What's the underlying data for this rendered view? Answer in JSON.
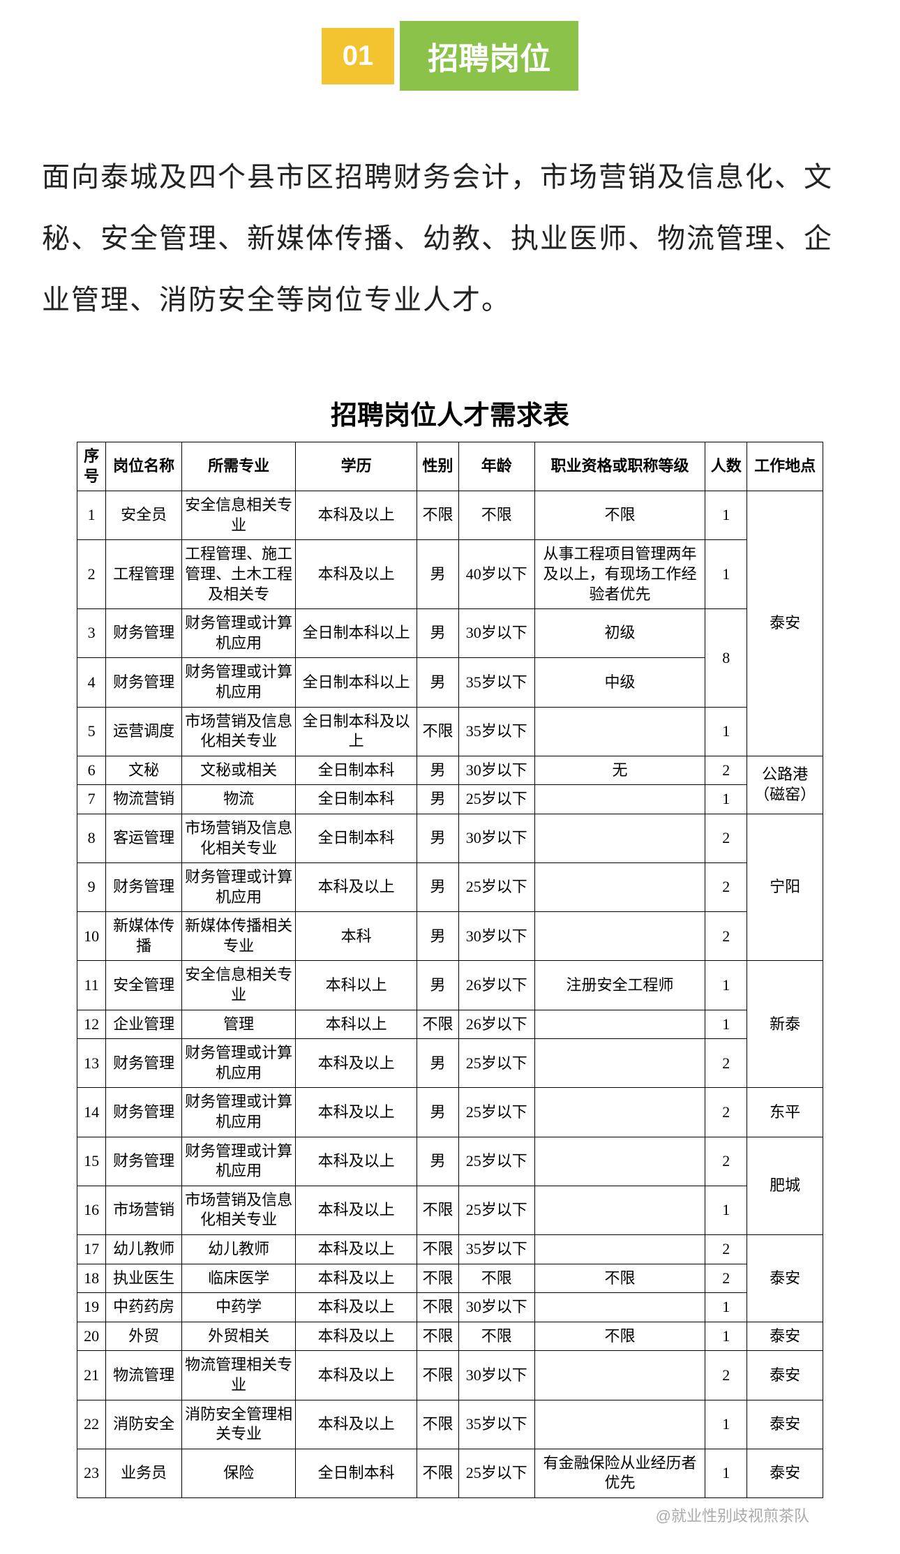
{
  "banner": {
    "num": "01",
    "title": "招聘岗位"
  },
  "intro": "面向泰城及四个县市区招聘财务会计，市场营销及信息化、文秘、安全管理、新媒体传播、幼教、执业医师、物流管理、企业管理、消防安全等岗位专业人才。",
  "table_title": "招聘岗位人才需求表",
  "columns": [
    "序号",
    "岗位名称",
    "所需专业",
    "学历",
    "性别",
    "年龄",
    "职业资格或职称等级",
    "人数",
    "工作地点"
  ],
  "rows": [
    {
      "idx": "1",
      "name": "安全员",
      "major": "安全信息相关专业",
      "edu": "本科及以上",
      "gender": "不限",
      "age": "不限",
      "qual": "不限",
      "count": "1"
    },
    {
      "idx": "2",
      "name": "工程管理",
      "major": "工程管理、施工管理、土木工程及相关专",
      "edu": "本科及以上",
      "gender": "男",
      "age": "40岁以下",
      "qual": "从事工程项目管理两年及以上，有现场工作经验者优先",
      "count": "1"
    },
    {
      "idx": "3",
      "name": "财务管理",
      "major": "财务管理或计算机应用",
      "edu": "全日制本科以上",
      "gender": "男",
      "age": "30岁以下",
      "qual": "初级"
    },
    {
      "idx": "4",
      "name": "财务管理",
      "major": "财务管理或计算机应用",
      "edu": "全日制本科以上",
      "gender": "男",
      "age": "35岁以下",
      "qual": "中级"
    },
    {
      "idx": "5",
      "name": "运营调度",
      "major": "市场营销及信息化相关专业",
      "edu": "全日制本科及以上",
      "gender": "不限",
      "age": "35岁以下",
      "qual": "",
      "count": "1"
    },
    {
      "idx": "6",
      "name": "文秘",
      "major": "文秘或相关",
      "edu": "全日制本科",
      "gender": "男",
      "age": "30岁以下",
      "qual": "无",
      "count": "2"
    },
    {
      "idx": "7",
      "name": "物流营销",
      "major": "物流",
      "edu": "全日制本科",
      "gender": "男",
      "age": "25岁以下",
      "qual": "",
      "count": "1"
    },
    {
      "idx": "8",
      "name": "客运管理",
      "major": "市场营销及信息化相关专业",
      "edu": "全日制本科",
      "gender": "男",
      "age": "30岁以下",
      "qual": "",
      "count": "2"
    },
    {
      "idx": "9",
      "name": "财务管理",
      "major": "财务管理或计算机应用",
      "edu": "本科及以上",
      "gender": "男",
      "age": "25岁以下",
      "qual": "",
      "count": "2"
    },
    {
      "idx": "10",
      "name": "新媒体传播",
      "major": "新媒体传播相关专业",
      "edu": "本科",
      "gender": "男",
      "age": "30岁以下",
      "qual": "",
      "count": "2"
    },
    {
      "idx": "11",
      "name": "安全管理",
      "major": "安全信息相关专业",
      "edu": "本科以上",
      "gender": "男",
      "age": "26岁以下",
      "qual": "注册安全工程师",
      "count": "1"
    },
    {
      "idx": "12",
      "name": "企业管理",
      "major": "管理",
      "edu": "本科以上",
      "gender": "不限",
      "age": "26岁以下",
      "qual": "",
      "count": "1"
    },
    {
      "idx": "13",
      "name": "财务管理",
      "major": "财务管理或计算机应用",
      "edu": "本科及以上",
      "gender": "男",
      "age": "25岁以下",
      "qual": "",
      "count": "2"
    },
    {
      "idx": "14",
      "name": "财务管理",
      "major": "财务管理或计算机应用",
      "edu": "本科及以上",
      "gender": "男",
      "age": "25岁以下",
      "qual": "",
      "count": "2"
    },
    {
      "idx": "15",
      "name": "财务管理",
      "major": "财务管理或计算机应用",
      "edu": "本科及以上",
      "gender": "男",
      "age": "25岁以下",
      "qual": "",
      "count": "2"
    },
    {
      "idx": "16",
      "name": "市场营销",
      "major": "市场营销及信息化相关专业",
      "edu": "本科及以上",
      "gender": "不限",
      "age": "25岁以下",
      "qual": "",
      "count": "1"
    },
    {
      "idx": "17",
      "name": "幼儿教师",
      "major": "幼儿教师",
      "edu": "本科及以上",
      "gender": "不限",
      "age": "35岁以下",
      "qual": "",
      "count": "2"
    },
    {
      "idx": "18",
      "name": "执业医生",
      "major": "临床医学",
      "edu": "本科及以上",
      "gender": "不限",
      "age": "不限",
      "qual": "不限",
      "count": "2"
    },
    {
      "idx": "19",
      "name": "中药药房",
      "major": "中药学",
      "edu": "本科及以上",
      "gender": "不限",
      "age": "30岁以下",
      "qual": "",
      "count": "1"
    },
    {
      "idx": "20",
      "name": "外贸",
      "major": "外贸相关",
      "edu": "本科及以上",
      "gender": "不限",
      "age": "不限",
      "qual": "不限",
      "count": "1"
    },
    {
      "idx": "21",
      "name": "物流管理",
      "major": "物流管理相关专业",
      "edu": "本科及以上",
      "gender": "不限",
      "age": "30岁以下",
      "qual": "",
      "count": "2"
    },
    {
      "idx": "22",
      "name": "消防安全",
      "major": "消防安全管理相关专业",
      "edu": "本科及以上",
      "gender": "不限",
      "age": "35岁以下",
      "qual": "",
      "count": "1"
    },
    {
      "idx": "23",
      "name": "业务员",
      "major": "保险",
      "edu": "全日制本科",
      "gender": "不限",
      "age": "25岁以下",
      "qual": "有金融保险从业经历者优先",
      "count": "1"
    }
  ],
  "location_spans": [
    {
      "text": "泰安",
      "span": 5
    },
    {
      "text": "公路港（磁窑）",
      "span": 2
    },
    {
      "text": "宁阳",
      "span": 3
    },
    {
      "text": "新泰",
      "span": 3
    },
    {
      "text": "东平",
      "span": 1
    },
    {
      "text": "肥城",
      "span": 2
    },
    {
      "text": "泰安",
      "span": 3
    },
    {
      "text": "泰安",
      "span": 1
    },
    {
      "text": "泰安",
      "span": 1
    },
    {
      "text": "泰安",
      "span": 1
    },
    {
      "text": "泰安",
      "span": 1
    }
  ],
  "count_merged": {
    "start": 2,
    "span": 2,
    "text": "8"
  },
  "watermark": "@就业性别歧视煎茶队",
  "colors": {
    "banner_num_bg": "#f4c430",
    "banner_title_bg": "#8bc34a",
    "accent": "#2196f3",
    "text": "#000000",
    "border": "#000000"
  }
}
